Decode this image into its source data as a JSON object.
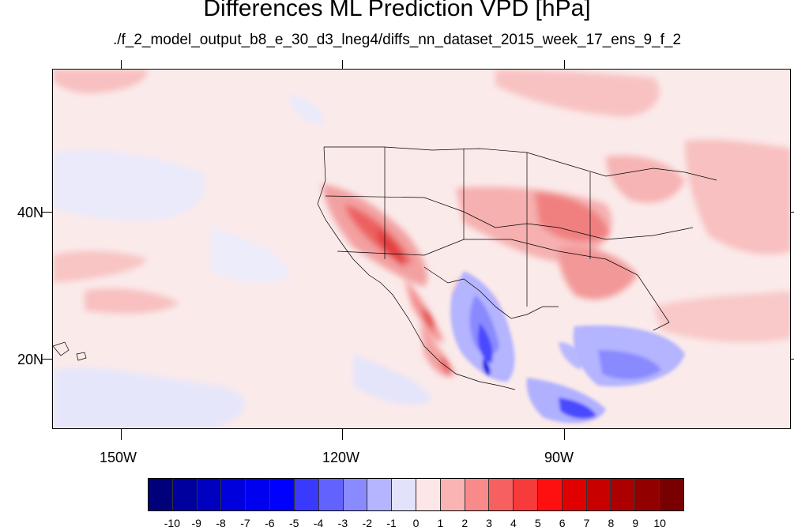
{
  "title": "Differences ML Prediction VPD [hPa]",
  "subtitle": "./f_2_model_output_b8_e_30_d3_lneg4/diffs_nn_dataset_2015_week_17_ens_9_f_2",
  "map": {
    "lon_range": [
      -160,
      -60
    ],
    "lat_range": [
      10,
      58
    ],
    "lat_labels": [
      {
        "label": "40N",
        "lat": 40
      },
      {
        "label": "20N",
        "lat": 20
      }
    ],
    "lon_labels": [
      {
        "label": "150W",
        "lon": -150
      },
      {
        "label": "120W",
        "lon": -120
      },
      {
        "label": "90W",
        "lon": -90
      }
    ],
    "background_color": "#fbeaea"
  },
  "colorbar": {
    "colors": [
      "#00007a",
      "#00009e",
      "#0000c0",
      "#0000dc",
      "#0000f0",
      "#0000ff",
      "#3a3aff",
      "#6262ff",
      "#8a8aff",
      "#b4b4ff",
      "#e2e2fa",
      "#fde6e6",
      "#fbb4b4",
      "#f98a8a",
      "#f76060",
      "#f73a3a",
      "#ff1010",
      "#e00000",
      "#c80000",
      "#ac0000",
      "#920000",
      "#780000"
    ],
    "labels": [
      "-10",
      "-9",
      "-8",
      "-7",
      "-6",
      "-5",
      "-4",
      "-3",
      "-2",
      "-1",
      "0",
      "1",
      "2",
      "3",
      "4",
      "5",
      "6",
      "7",
      "8",
      "9",
      "10"
    ]
  }
}
